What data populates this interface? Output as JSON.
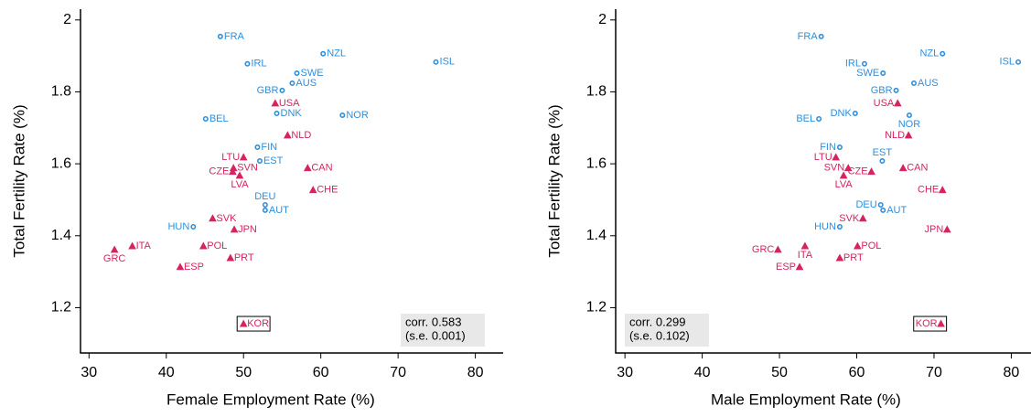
{
  "chart_data": [
    {
      "type": "scatter",
      "xlabel": "Female Employment Rate (%)",
      "ylabel": "Total Fertility Rate (%)",
      "xlim": [
        28.9,
        83.6
      ],
      "ylim": [
        1.074,
        2.03
      ],
      "xticks": [
        30,
        40,
        50,
        60,
        70,
        80
      ],
      "yticks": [
        1.2,
        1.4,
        1.6,
        1.8,
        2
      ],
      "annotation": [
        "corr. 0.583",
        "(s.e. 0.001)"
      ],
      "series": [
        {
          "color": "#2f8fdc",
          "marker": "circle",
          "labels": [
            "FRA",
            "NZL",
            "ISL",
            "IRL",
            "SWE",
            "AUS",
            "GBR",
            "BEL",
            "DNK",
            "NOR",
            "FIN",
            "EST",
            "DEU",
            "AUT",
            "HUN"
          ],
          "x": [
            47.0,
            60.3,
            74.9,
            50.5,
            56.9,
            56.3,
            55.0,
            45.1,
            54.3,
            62.8,
            51.8,
            52.1,
            52.8,
            52.8,
            43.5
          ],
          "y": [
            1.954,
            1.906,
            1.883,
            1.878,
            1.852,
            1.824,
            1.804,
            1.725,
            1.74,
            1.735,
            1.646,
            1.608,
            1.486,
            1.471,
            1.425
          ]
        },
        {
          "color": "#d6245f",
          "marker": "triangle",
          "labels": [
            "USA",
            "NLD",
            "LTU",
            "SVN",
            "CZE",
            "LVA",
            "CAN",
            "CHE",
            "SVK",
            "JPN",
            "ITA",
            "GRC",
            "POL",
            "PRT",
            "ESP",
            "KOR"
          ],
          "x": [
            54.1,
            55.7,
            50.0,
            48.7,
            48.6,
            49.5,
            58.3,
            59.0,
            46.0,
            48.8,
            35.6,
            33.3,
            44.8,
            48.3,
            41.8,
            50.0
          ],
          "y": [
            1.768,
            1.679,
            1.618,
            1.588,
            1.578,
            1.567,
            1.588,
            1.527,
            1.448,
            1.417,
            1.371,
            1.361,
            1.371,
            1.338,
            1.313,
            1.155
          ]
        }
      ]
    },
    {
      "type": "scatter",
      "xlabel": "Male Employment Rate (%)",
      "ylabel": "Total Fertility Rate (%)",
      "xlim": [
        28.8,
        83.5
      ],
      "ylim": [
        1.074,
        2.03
      ],
      "xticks": [
        30,
        40,
        50,
        60,
        70,
        80
      ],
      "yticks": [
        1.2,
        1.4,
        1.6,
        1.8,
        2
      ],
      "annotation": [
        "corr. 0.299",
        "(s.e. 0.102)"
      ],
      "series": [
        {
          "color": "#2f8fdc",
          "marker": "circle",
          "labels": [
            "FRA",
            "NZL",
            "ISL",
            "IRL",
            "SWE",
            "AUS",
            "GBR",
            "BEL",
            "DNK",
            "NOR",
            "FIN",
            "EST",
            "DEU",
            "AUT",
            "HUN"
          ],
          "x": [
            55.4,
            71.1,
            80.9,
            61.0,
            63.4,
            67.4,
            65.1,
            55.1,
            59.8,
            66.8,
            57.8,
            63.3,
            63.1,
            63.4,
            57.8
          ],
          "y": [
            1.954,
            1.906,
            1.883,
            1.878,
            1.852,
            1.824,
            1.804,
            1.725,
            1.74,
            1.735,
            1.646,
            1.608,
            1.486,
            1.471,
            1.425
          ]
        },
        {
          "color": "#d6245f",
          "marker": "triangle",
          "labels": [
            "USA",
            "NLD",
            "LTU",
            "SVN",
            "CZE",
            "LVA",
            "CAN",
            "CHE",
            "SVK",
            "JPN",
            "ITA",
            "GRC",
            "POL",
            "PRT",
            "ESP",
            "KOR"
          ],
          "x": [
            65.3,
            66.7,
            57.3,
            58.9,
            61.9,
            58.3,
            66.0,
            71.1,
            60.8,
            71.7,
            53.3,
            49.8,
            60.1,
            57.8,
            52.6,
            70.9
          ],
          "y": [
            1.768,
            1.679,
            1.618,
            1.588,
            1.578,
            1.567,
            1.588,
            1.527,
            1.448,
            1.417,
            1.371,
            1.361,
            1.371,
            1.338,
            1.313,
            1.155
          ]
        }
      ]
    }
  ]
}
